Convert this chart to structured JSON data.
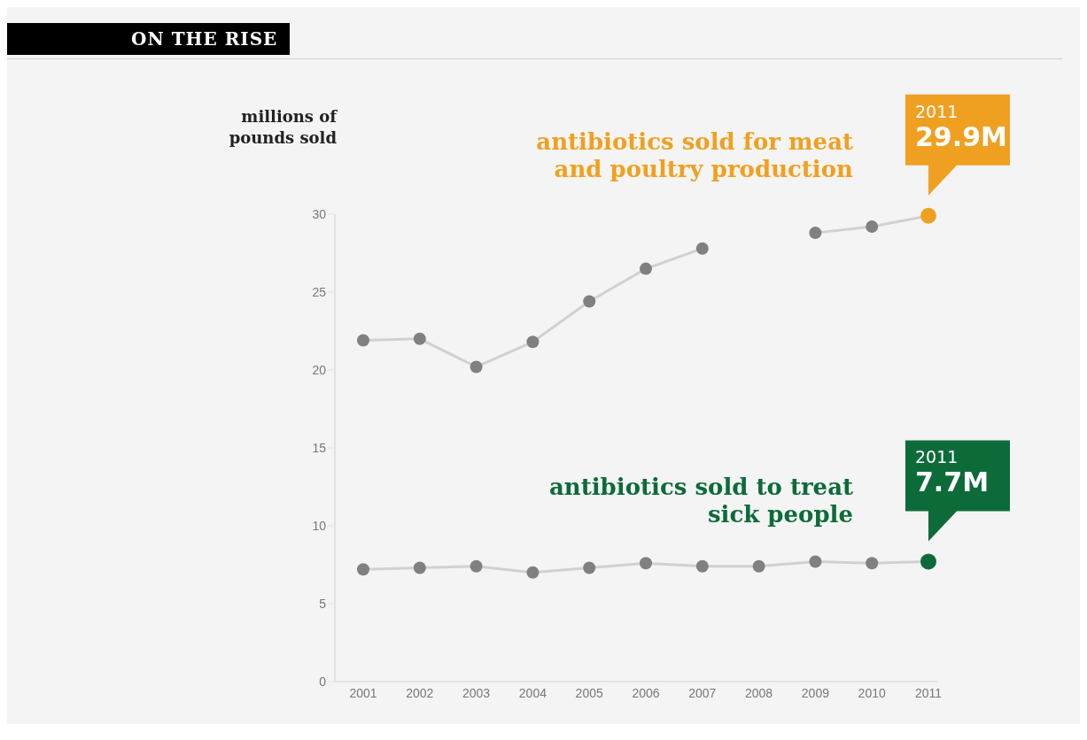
{
  "chart_data": {
    "type": "line",
    "title": "ON THE RISE",
    "ylabel": "millions of pounds sold",
    "categories": [
      "2001",
      "2002",
      "2003",
      "2004",
      "2005",
      "2006",
      "2007",
      "2008",
      "2009",
      "2010",
      "2011"
    ],
    "series": [
      {
        "name": "antibiotics sold for meat and poultry production",
        "color": "#808080",
        "colors": [
          "#808080",
          "#808080",
          "#808080",
          "#808080",
          "#808080",
          "#808080",
          "#808080",
          null,
          "#808080",
          "#808080",
          "#f0a020"
        ],
        "values": [
          21.9,
          22.0,
          20.2,
          21.8,
          24.4,
          26.5,
          27.8,
          null,
          28.8,
          29.2,
          29.9
        ]
      },
      {
        "name": "antibiotics sold to treat sick people",
        "color": "#808080",
        "colors": [
          "#808080",
          "#808080",
          "#808080",
          "#808080",
          "#808080",
          "#808080",
          "#808080",
          "#808080",
          "#808080",
          "#808080",
          "#0d6b3a"
        ],
        "values": [
          7.2,
          7.3,
          7.4,
          7.0,
          7.3,
          7.6,
          7.4,
          7.4,
          7.7,
          7.6,
          7.7
        ]
      }
    ],
    "annotations": [
      {
        "text": "2011\n29.9M",
        "x": "2011",
        "y": 29.9
      },
      {
        "text": "2011\n7.7M",
        "x": "2011",
        "y": 7.7
      }
    ],
    "ylim": [
      0,
      30
    ],
    "yticks": [
      0,
      5,
      10,
      15,
      20,
      25,
      30
    ],
    "grid": false,
    "legend": false,
    "marker": "circle",
    "line_style": "solid"
  }
}
